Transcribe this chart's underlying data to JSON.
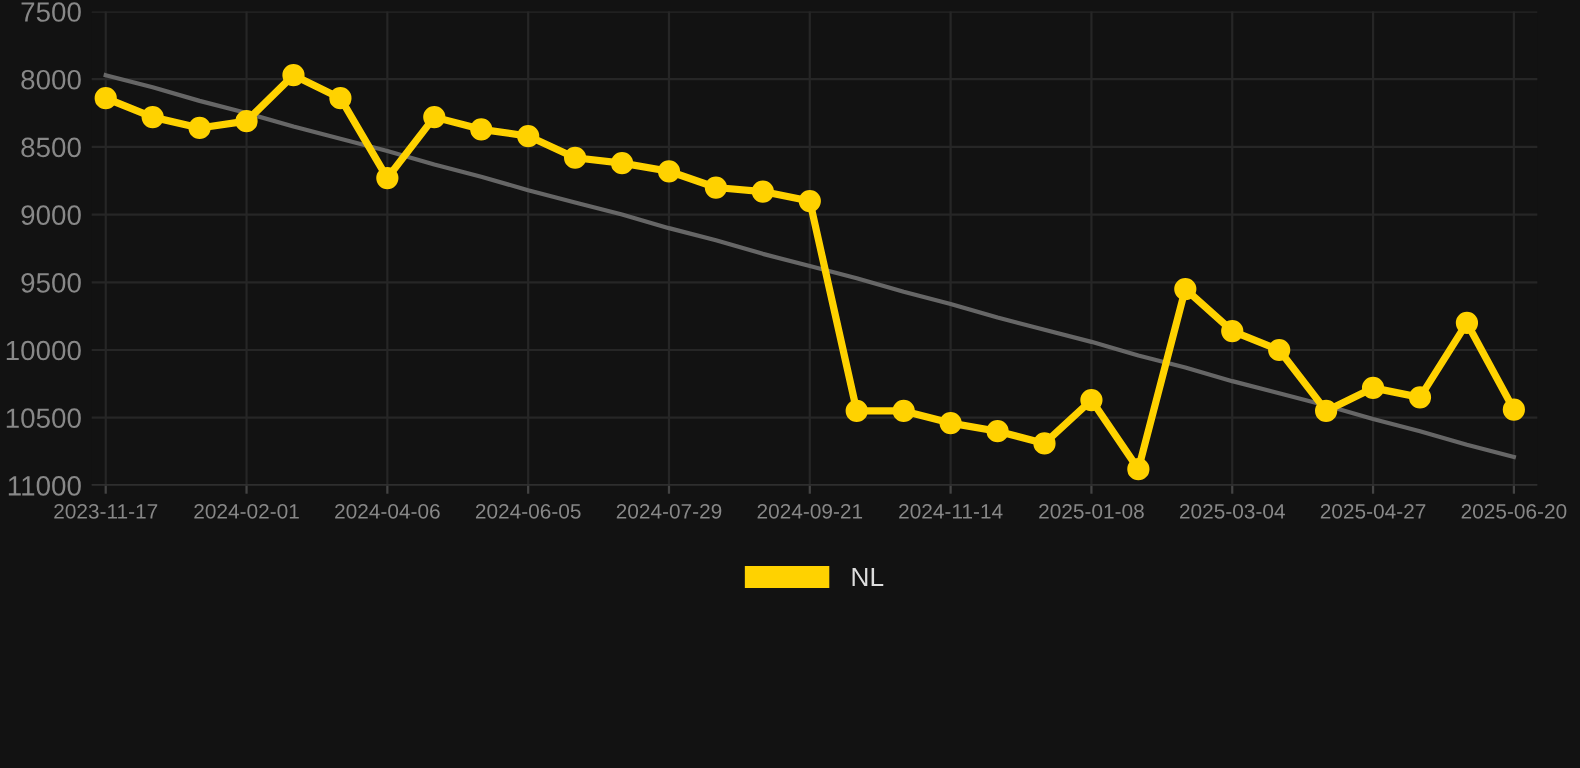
{
  "chart_data": {
    "type": "line",
    "categories": [
      "2023-11-17",
      null,
      null,
      "2024-02-01",
      null,
      null,
      "2024-04-06",
      null,
      null,
      "2024-06-05",
      null,
      null,
      "2024-07-29",
      null,
      null,
      "2024-09-21",
      null,
      null,
      "2024-11-14",
      null,
      null,
      "2025-01-08",
      null,
      null,
      "2025-03-04",
      null,
      null,
      "2025-04-27",
      null,
      null,
      "2025-06-20"
    ],
    "series": [
      {
        "name": "NL",
        "color": "#ffd200",
        "marker": "circle",
        "values": [
          8140,
          8280,
          8360,
          8310,
          7970,
          8140,
          8730,
          8280,
          8370,
          8420,
          8580,
          8620,
          8680,
          8800,
          8830,
          8900,
          10450,
          10450,
          10540,
          10600,
          10690,
          10370,
          10880,
          9550,
          9860,
          10000,
          10450,
          10280,
          10350,
          9800,
          10440
        ]
      },
      {
        "type": "line",
        "color": "#666666",
        "marker": "none",
        "values": [
          7970,
          8060,
          8160,
          8250,
          8350,
          8440,
          8530,
          8630,
          8720,
          8820,
          8910,
          9000,
          9100,
          9190,
          9290,
          9380,
          9470,
          9570,
          9660,
          9760,
          9850,
          9940,
          10040,
          10130,
          10230,
          10320,
          10410,
          10510,
          10600,
          10700,
          10790
        ]
      }
    ],
    "ylim": [
      11000,
      7500
    ],
    "yticks": [
      7500,
      8000,
      8500,
      9000,
      9500,
      10000,
      10500,
      11000
    ],
    "grid": true,
    "legend": "bottom",
    "line_style": "solid"
  }
}
